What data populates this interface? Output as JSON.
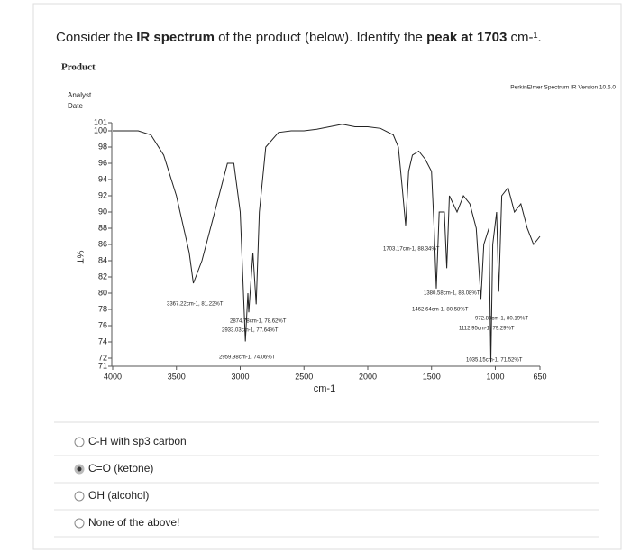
{
  "question_parts": [
    "Consider the ",
    "IR spectrum",
    " of the product (below). Identify the ",
    "peak at 1703",
    " cm-¹."
  ],
  "section": "Product",
  "header_left": [
    "Analyst",
    "Date"
  ],
  "header_right": "PerkinElmer Spectrum IR Version 10.6.0",
  "chart_data": {
    "type": "line",
    "color": "#222222",
    "x_label": "cm-1",
    "y_label": "%T",
    "xlim": [
      4000,
      650
    ],
    "ylim": [
      71,
      101
    ],
    "xticks": [
      4000,
      3500,
      3000,
      2500,
      2000,
      1500,
      1000,
      650
    ],
    "yticks": [
      101,
      100,
      98,
      96,
      94,
      92,
      90,
      88,
      86,
      84,
      82,
      80,
      78,
      76,
      74,
      72,
      71
    ],
    "x": [
      4000,
      3800,
      3700,
      3600,
      3500,
      3400,
      3367.22,
      3300,
      3200,
      3100,
      3050,
      3000,
      2959.98,
      2940,
      2933.03,
      2900,
      2874.78,
      2850,
      2800,
      2700,
      2600,
      2500,
      2400,
      2300,
      2200,
      2100,
      2000,
      1900,
      1800,
      1760,
      1730,
      1703.17,
      1680,
      1650,
      1600,
      1550,
      1500,
      1480,
      1462.64,
      1440,
      1400,
      1380.58,
      1360,
      1300,
      1250,
      1200,
      1150,
      1112.95,
      1090,
      1050,
      1035.15,
      1020,
      990,
      972.83,
      950,
      900,
      850,
      800,
      750,
      700,
      650
    ],
    "values": [
      100,
      100,
      99.5,
      97,
      92,
      85,
      81.22,
      84,
      90,
      96,
      96,
      90,
      74.06,
      80,
      77.64,
      85,
      78.62,
      90,
      98,
      99.8,
      100,
      100,
      100.2,
      100.5,
      100.8,
      100.5,
      100.5,
      100.3,
      99.5,
      98,
      93,
      88.34,
      95,
      97,
      97.5,
      96.5,
      95,
      88,
      80.58,
      90,
      90,
      83.08,
      92,
      90,
      92,
      91,
      88,
      79.29,
      86,
      88,
      71.52,
      86,
      90,
      80.19,
      92,
      93,
      90,
      91,
      88,
      86,
      87
    ],
    "annotations": [
      "3367.22cm-1, 81.22%T",
      "2874.78cm-1, 78.62%T",
      "2933.03cm-1, 77.64%T",
      "2959.98cm-1, 74.06%T",
      "1703.17cm-1, 88.34%T",
      "1380.58cm-1, 83.08%T",
      "1462.64cm-1, 80.58%T",
      "972.83cm-1, 80.19%T",
      "1112.95cm-1, 79.29%T",
      "1035.15cm-1, 71.52%T"
    ]
  },
  "options": [
    "C-H with sp3 carbon",
    "C=O (ketone)",
    "OH (alcohol)",
    "None of the above!"
  ],
  "selected_option": 1
}
